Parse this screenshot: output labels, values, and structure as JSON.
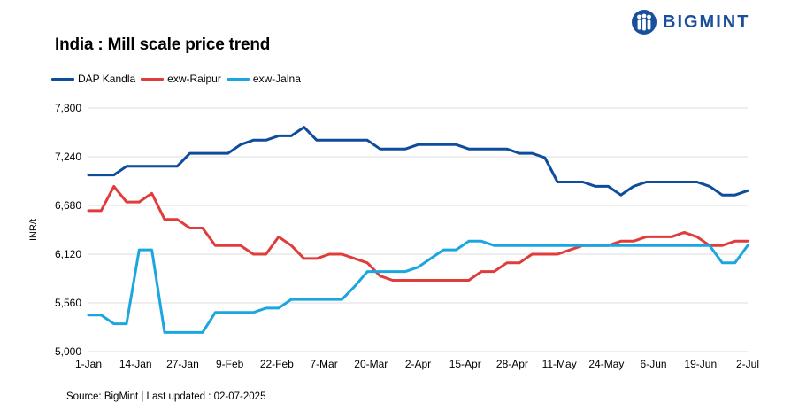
{
  "header": {
    "title": "India : Mill scale price trend",
    "logo_text": "BIGMINT"
  },
  "footer": {
    "source": "Source: BigMint | Last updated : 02-07-2025"
  },
  "colors": {
    "DAP Kandla": "#0f4c9c",
    "exw-Raipur": "#e03c3c",
    "exw-Jalna": "#1ca6df",
    "grid": "#dddddd",
    "logo": "#1a4f9c"
  },
  "chart_data": {
    "type": "line",
    "title": "India : Mill scale price trend",
    "xlabel": "",
    "ylabel": "INR/t",
    "ylim": [
      5000,
      7800
    ],
    "yticks": [
      5000,
      5560,
      6120,
      6680,
      7240,
      7800
    ],
    "ytick_labels": [
      "5,000",
      "5,560",
      "6,120",
      "6,680",
      "7,240",
      "7,800"
    ],
    "grid": true,
    "legend_position": "top-left",
    "xtick_labels": [
      "1-Jan",
      "14-Jan",
      "27-Jan",
      "9-Feb",
      "22-Feb",
      "7-Mar",
      "20-Mar",
      "2-Apr",
      "15-Apr",
      "28-Apr",
      "11-May",
      "24-May",
      "6-Jun",
      "19-Jun",
      "2-Jul"
    ],
    "x": [
      0,
      1,
      2,
      3,
      4,
      5,
      6,
      7,
      8,
      9,
      10,
      11,
      12,
      13,
      14,
      15,
      16,
      17,
      18,
      19,
      20,
      21,
      22,
      23,
      24,
      25,
      26,
      27,
      28,
      29,
      30,
      31,
      32,
      33,
      34,
      35,
      36,
      37,
      38,
      39,
      40,
      41,
      42,
      43,
      44,
      45,
      46,
      47,
      48,
      49,
      50,
      51,
      52
    ],
    "series": [
      {
        "name": "DAP Kandla",
        "values": [
          7030,
          7030,
          7030,
          7130,
          7130,
          7130,
          7130,
          7130,
          7280,
          7280,
          7280,
          7280,
          7380,
          7430,
          7430,
          7480,
          7480,
          7580,
          7430,
          7430,
          7430,
          7430,
          7430,
          7330,
          7330,
          7330,
          7380,
          7380,
          7380,
          7380,
          7330,
          7330,
          7330,
          7330,
          7280,
          7280,
          7230,
          6950,
          6950,
          6950,
          6900,
          6900,
          6800,
          6900,
          6950,
          6950,
          6950,
          6950,
          6950,
          6900,
          6800,
          6800,
          6850
        ]
      },
      {
        "name": "exw-Raipur",
        "values": [
          6620,
          6620,
          6900,
          6720,
          6720,
          6820,
          6520,
          6520,
          6420,
          6420,
          6220,
          6220,
          6220,
          6120,
          6120,
          6320,
          6220,
          6070,
          6070,
          6120,
          6120,
          6070,
          6020,
          5870,
          5820,
          5820,
          5820,
          5820,
          5820,
          5820,
          5820,
          5920,
          5920,
          6020,
          6020,
          6120,
          6120,
          6120,
          6170,
          6220,
          6220,
          6220,
          6270,
          6270,
          6320,
          6320,
          6320,
          6370,
          6320,
          6220,
          6220,
          6270,
          6270
        ]
      },
      {
        "name": "exw-Jalna",
        "values": [
          5420,
          5420,
          5320,
          5320,
          6170,
          6170,
          5220,
          5220,
          5220,
          5220,
          5450,
          5450,
          5450,
          5450,
          5500,
          5500,
          5600,
          5600,
          5600,
          5600,
          5600,
          5750,
          5920,
          5920,
          5920,
          5920,
          5970,
          6070,
          6170,
          6170,
          6270,
          6270,
          6220,
          6220,
          6220,
          6220,
          6220,
          6220,
          6220,
          6220,
          6220,
          6220,
          6220,
          6220,
          6220,
          6220,
          6220,
          6220,
          6220,
          6220,
          6020,
          6020,
          6220
        ]
      }
    ]
  }
}
